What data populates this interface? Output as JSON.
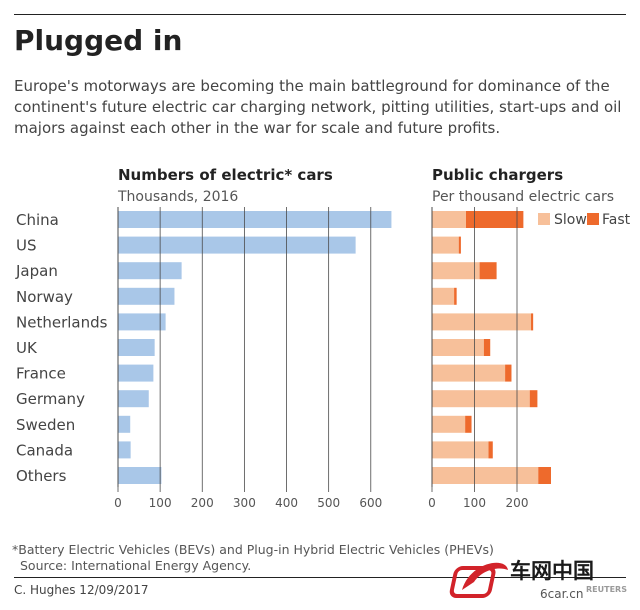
{
  "headline": "Plugged in",
  "deck": "Europe's motorways are becoming the main battleground for dominance of the continent's future electric car charging network, pitting utilities, start-ups and oil majors against each other in the war for scale and future profits.",
  "footnote": {
    "line1": "*Battery Electric Vehicles (BEVs) and Plug-in Hybrid Electric Vehicles (PHEVs)",
    "line2": "Source: International Energy Agency."
  },
  "credit": "C. Hughes 12/09/2017",
  "watermark": {
    "brand_text": "车网中国",
    "site_text": "6car.cn",
    "agency_text": "REUTERS"
  },
  "colors": {
    "ev_bar": "#a9c7e8",
    "ev_bar_edge": "#7fa6d3",
    "slow": "#f7c09a",
    "fast": "#ee6a2c",
    "grid": "#4a4a4a",
    "text": "#333333"
  },
  "chart_data": [
    {
      "type": "bar",
      "orientation": "horizontal",
      "title": "Numbers of electric* cars",
      "subtitle": "Thousands, 2016",
      "categories": [
        "China",
        "US",
        "Japan",
        "Norway",
        "Netherlands",
        "UK",
        "France",
        "Germany",
        "Sweden",
        "Canada",
        "Others"
      ],
      "values": [
        649,
        564,
        151,
        134,
        113,
        87,
        84,
        73,
        29,
        30,
        103
      ],
      "xlim": [
        0,
        700
      ],
      "xticks": [
        0,
        100,
        200,
        300,
        400,
        500,
        600
      ],
      "grid": true
    },
    {
      "type": "bar",
      "orientation": "horizontal",
      "stacked": true,
      "title": "Public chargers",
      "subtitle": "Per thousand electric cars",
      "categories": [
        "China",
        "US",
        "Japan",
        "Norway",
        "Netherlands",
        "UK",
        "France",
        "Germany",
        "Sweden",
        "Canada",
        "Others"
      ],
      "series": [
        {
          "name": "Slow",
          "values": [
            80,
            63,
            112,
            52,
            233,
            122,
            172,
            230,
            78,
            133,
            250
          ]
        },
        {
          "name": "Fast",
          "values": [
            135,
            5,
            40,
            6,
            5,
            15,
            15,
            18,
            15,
            10,
            30
          ]
        }
      ],
      "xlim": [
        0,
        250
      ],
      "xticks": [
        0,
        100,
        200
      ],
      "legend": "top-right",
      "grid": true
    }
  ]
}
